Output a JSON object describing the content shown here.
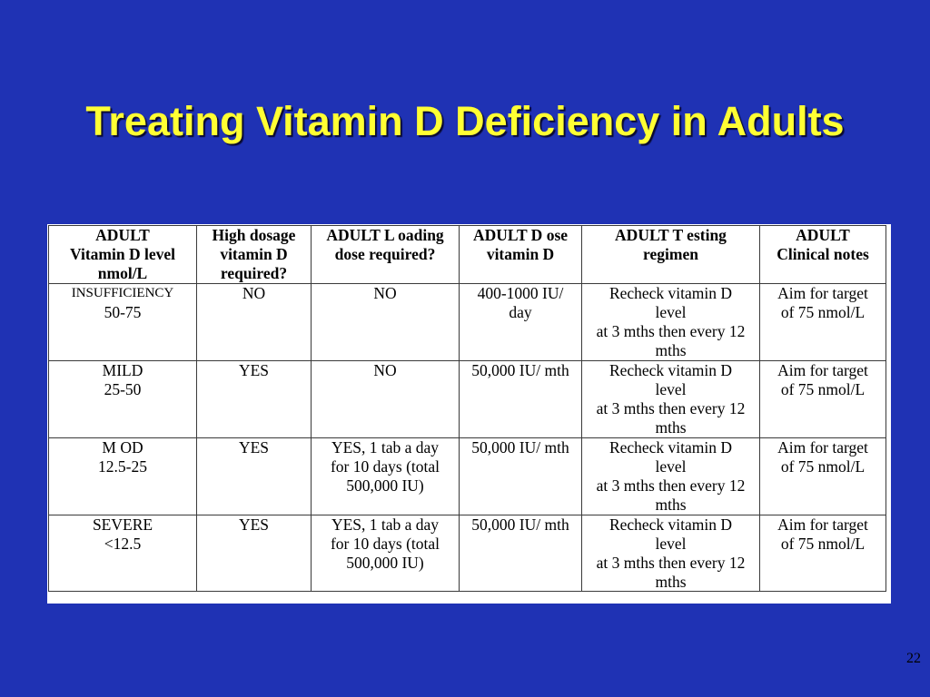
{
  "slide": {
    "title": "Treating Vitamin D Deficiency in Adults",
    "page_number": "22"
  },
  "colors": {
    "background": "#1f32b4",
    "title": "#ffff33",
    "table_background": "#ffffff",
    "grid_lines": "#3a3a3a",
    "text": "#000000"
  },
  "table": {
    "header": {
      "level": [
        "ADULT",
        "Vitamin D level",
        "nmol/L"
      ],
      "high_dose_required": [
        "High dosage",
        "vitamin D",
        "required?"
      ],
      "loading_dose": [
        "ADULT L oading",
        "dose required?"
      ],
      "dose": [
        "ADULT D ose",
        "vitamin D"
      ],
      "testing": [
        "ADULT T esting",
        "regimen"
      ],
      "notes": [
        "ADULT",
        "Clinical notes"
      ]
    },
    "rows": [
      {
        "level": [
          "INSUFFICIENCY",
          "50-75"
        ],
        "high_dose_required": [
          "NO"
        ],
        "loading_dose": [
          "NO"
        ],
        "dose": [
          "400-1000 IU/",
          "day"
        ],
        "testing": [
          "Recheck vitamin D",
          "level",
          "at 3 mths then every 12",
          "mths"
        ],
        "notes": [
          "Aim for target",
          "of 75 nmol/L"
        ]
      },
      {
        "level": [
          "MILD",
          "25-50"
        ],
        "high_dose_required": [
          "YES"
        ],
        "loading_dose": [
          "NO"
        ],
        "dose": [
          "50,000 IU/ mth"
        ],
        "testing": [
          "Recheck vitamin D",
          "level",
          "at 3 mths then every 12",
          "mths"
        ],
        "notes": [
          "Aim for target",
          "of 75 nmol/L"
        ]
      },
      {
        "level": [
          "M OD",
          "12.5-25"
        ],
        "high_dose_required": [
          "YES"
        ],
        "loading_dose": [
          "YES, 1 tab a day",
          "for 10 days (total",
          "500,000 IU)"
        ],
        "dose": [
          "50,000 IU/ mth"
        ],
        "testing": [
          "Recheck vitamin D",
          "level",
          "at 3 mths then every 12",
          "mths"
        ],
        "notes": [
          "Aim for target",
          "of 75 nmol/L"
        ]
      },
      {
        "level": [
          "SEVERE",
          "<12.5"
        ],
        "high_dose_required": [
          "YES"
        ],
        "loading_dose": [
          "YES, 1 tab a day",
          "for 10 days (total",
          "500,000 IU)"
        ],
        "dose": [
          "50,000 IU/ mth"
        ],
        "testing": [
          "Recheck vitamin D",
          "level",
          "at 3 mths then every 12",
          "mths"
        ],
        "notes": [
          "Aim for target",
          "of 75 nmol/L"
        ]
      }
    ]
  }
}
